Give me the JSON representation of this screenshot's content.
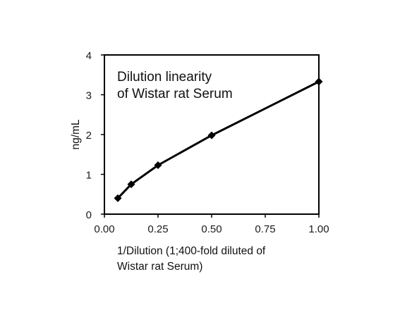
{
  "chart_data": {
    "type": "line",
    "title_lines": [
      "Dilution  linearity",
      "of Wistar rat Serum"
    ],
    "xlabel_lines": [
      "1/Dilution  (1;400-fold diluted  of",
      "Wistar rat  Serum)"
    ],
    "ylabel": "ng/mL",
    "xlim": [
      0,
      1
    ],
    "ylim": [
      0,
      4
    ],
    "xticks": [
      "0.00",
      "0.25",
      "0.50",
      "0.75",
      "1.00"
    ],
    "yticks": [
      "0",
      "1",
      "2",
      "3",
      "4"
    ],
    "grid": false,
    "legend": "none",
    "series": [
      {
        "marker": "diamond",
        "color": "#000000",
        "x": [
          0.0625,
          0.125,
          0.25,
          0.5,
          1.0
        ],
        "y": [
          0.4,
          0.75,
          1.23,
          1.98,
          3.33
        ]
      }
    ]
  }
}
